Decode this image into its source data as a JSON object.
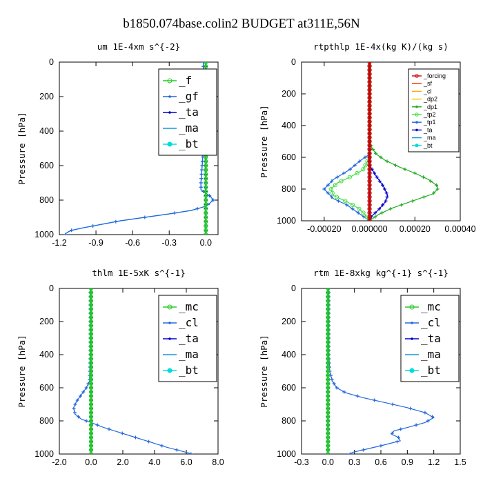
{
  "title": "b1850.074base.colin2  BUDGET at311E,56N",
  "colors": {
    "forcing": "#cc0000",
    "sf": "#ee3300",
    "cl": "#ffaa00",
    "dp2": "#ddcc00",
    "dp1": "#22aa22",
    "tp2": "#44dd44",
    "tp1": "#2266dd",
    "ta": "#0000cc",
    "ma": "#1199dd",
    "bt": "#00dddd",
    "mc": "#22cc22",
    "f": "#22cc22",
    "gf": "#2266dd"
  },
  "chart_data": [
    {
      "type": "line",
      "title": "um   1E-4xm s^{-2}",
      "ylabel": "Pressure [hPa]",
      "ylim": [
        1000,
        0
      ],
      "xlim": [
        -1.2,
        0.1
      ],
      "xticks": [
        -1.2,
        -0.9,
        -0.6,
        -0.3,
        0.0
      ],
      "xticklabels": [
        "-1.2",
        "-0.9",
        "-0.6",
        "-0.3",
        "0.0"
      ],
      "yticks": [
        0,
        200,
        400,
        600,
        800,
        1000
      ],
      "yticklabels": [
        "0",
        "200",
        "400",
        "600",
        "800",
        "1000"
      ],
      "legend": {
        "position": "top-right",
        "size": "large"
      },
      "series": [
        {
          "name": "_f",
          "color_key": "f",
          "marker": "circle",
          "width": 2.5,
          "points": [
            [
              0.0,
              0
            ],
            [
              0.0,
              100
            ],
            [
              0.0,
              200
            ],
            [
              0.0,
              300
            ],
            [
              0.0,
              400
            ],
            [
              0.0,
              500
            ],
            [
              0.0,
              600
            ],
            [
              0.0,
              700
            ],
            [
              0.0,
              800
            ],
            [
              0.0,
              900
            ],
            [
              0.0,
              1000
            ]
          ]
        },
        {
          "name": "_gf",
          "color_key": "gf",
          "marker": "dot",
          "points": [
            [
              -0.02,
              0
            ],
            [
              -0.02,
              300
            ],
            [
              -0.02,
              500
            ],
            [
              -0.03,
              600
            ],
            [
              -0.04,
              700
            ],
            [
              -0.04,
              740
            ],
            [
              0.0,
              760
            ],
            [
              0.04,
              780
            ],
            [
              0.06,
              800
            ],
            [
              0.03,
              820
            ],
            [
              -0.02,
              840
            ],
            [
              -0.12,
              860
            ],
            [
              -0.3,
              880
            ],
            [
              -0.5,
              900
            ],
            [
              -0.7,
              920
            ],
            [
              -0.85,
              940
            ],
            [
              -1.0,
              960
            ],
            [
              -1.1,
              975
            ],
            [
              -1.13,
              985
            ],
            [
              -1.15,
              995
            ],
            [
              -1.15,
              1000
            ]
          ]
        },
        {
          "name": "_ta",
          "color_key": "ta",
          "marker": "dot",
          "points": [
            [
              0.0,
              0
            ],
            [
              0.0,
              1000
            ]
          ]
        },
        {
          "name": "_ma",
          "color_key": "ma",
          "marker": "dash",
          "points": [
            [
              -0.02,
              0
            ],
            [
              -0.02,
              300
            ],
            [
              -0.02,
              500
            ],
            [
              -0.03,
              600
            ],
            [
              -0.04,
              700
            ],
            [
              -0.04,
              740
            ],
            [
              0.0,
              760
            ],
            [
              0.04,
              780
            ],
            [
              0.06,
              800
            ],
            [
              0.03,
              820
            ],
            [
              -0.02,
              840
            ],
            [
              -0.12,
              860
            ],
            [
              -0.3,
              880
            ],
            [
              -0.5,
              900
            ],
            [
              -0.7,
              920
            ],
            [
              -0.85,
              940
            ],
            [
              -1.0,
              960
            ],
            [
              -1.1,
              975
            ],
            [
              -1.13,
              985
            ],
            [
              -1.15,
              995
            ],
            [
              -1.15,
              1000
            ]
          ]
        },
        {
          "name": "_bt",
          "color_key": "bt",
          "marker": "none",
          "points": [
            [
              0.0,
              0
            ],
            [
              0.0,
              1000
            ]
          ]
        }
      ]
    },
    {
      "type": "line",
      "title": "rtpthlp   1E-4x(kg K)/(kg s)",
      "ylabel": "Pressure [hPa]",
      "ylim": [
        1000,
        0
      ],
      "xlim": [
        -0.0003,
        0.0004
      ],
      "xticks": [
        -0.0002,
        0.0,
        0.0002,
        0.0004
      ],
      "xticklabels": [
        "-0.00020",
        "0.000000",
        "0.00020",
        "0.00040"
      ],
      "yticks": [
        0,
        200,
        400,
        600,
        800,
        1000
      ],
      "yticklabels": [
        "0",
        "200",
        "400",
        "600",
        "800",
        "1000"
      ],
      "legend": {
        "position": "top-right",
        "size": "small"
      },
      "series": [
        {
          "name": "_forcing",
          "color_key": "forcing",
          "marker": "circle",
          "width": 3,
          "points": [
            [
              0.0,
              0
            ],
            [
              0.0,
              200
            ],
            [
              0.0,
              400
            ],
            [
              0.0,
              600
            ],
            [
              0.0,
              800
            ],
            [
              0.0,
              1000
            ]
          ]
        },
        {
          "name": "_sf",
          "color_key": "sf",
          "marker": "none",
          "points": [
            [
              0.0,
              0
            ],
            [
              0.0,
              1000
            ]
          ]
        },
        {
          "name": "_cl",
          "color_key": "cl",
          "marker": "none",
          "points": [
            [
              0.0,
              0
            ],
            [
              0.0,
              1000
            ]
          ]
        },
        {
          "name": "_dp2",
          "color_key": "dp2",
          "marker": "none",
          "points": [
            [
              0.0,
              0
            ],
            [
              0.0,
              1000
            ]
          ]
        },
        {
          "name": "_dp1",
          "color_key": "dp1",
          "marker": "dot",
          "points": [
            [
              0.0,
              0
            ],
            [
              0.0,
              500
            ],
            [
              1e-05,
              540
            ],
            [
              3e-05,
              580
            ],
            [
              7e-05,
              620
            ],
            [
              0.00013,
              660
            ],
            [
              0.0002,
              700
            ],
            [
              0.00026,
              740
            ],
            [
              0.0003,
              780
            ],
            [
              0.0003,
              800
            ],
            [
              0.00028,
              830
            ],
            [
              0.0002,
              870
            ],
            [
              0.0001,
              920
            ],
            [
              4e-05,
              960
            ],
            [
              0.0,
              1000
            ]
          ]
        },
        {
          "name": "_tp2",
          "color_key": "tp2",
          "marker": "circle",
          "points": [
            [
              0.0,
              0
            ],
            [
              0.0,
              600
            ],
            [
              -3e-05,
              680
            ],
            [
              -8e-05,
              720
            ],
            [
              -0.00014,
              760
            ],
            [
              -0.00017,
              800
            ],
            [
              -0.00016,
              840
            ],
            [
              -0.0001,
              880
            ],
            [
              -5e-05,
              920
            ],
            [
              -2e-05,
              960
            ],
            [
              0.0,
              1000
            ]
          ]
        },
        {
          "name": "_tp1",
          "color_key": "tp1",
          "marker": "dot",
          "points": [
            [
              0.0,
              0
            ],
            [
              0.0,
              580
            ],
            [
              -4e-05,
              620
            ],
            [
              -9e-05,
              680
            ],
            [
              -0.00016,
              740
            ],
            [
              -0.0002,
              800
            ],
            [
              -0.00016,
              860
            ],
            [
              -0.0001,
              900
            ],
            [
              -5e-05,
              950
            ],
            [
              0.0,
              1000
            ]
          ]
        },
        {
          "name": "_ta",
          "color_key": "ta",
          "marker": "dot",
          "points": [
            [
              0.0,
              0
            ],
            [
              0.0,
              650
            ],
            [
              3e-05,
              720
            ],
            [
              6e-05,
              780
            ],
            [
              8e-05,
              840
            ],
            [
              7e-05,
              880
            ],
            [
              4e-05,
              930
            ],
            [
              1e-05,
              970
            ],
            [
              0.0,
              1000
            ]
          ]
        },
        {
          "name": "_ma",
          "color_key": "ma",
          "marker": "dash",
          "points": [
            [
              0.0,
              0
            ],
            [
              0.0,
              1000
            ]
          ]
        },
        {
          "name": "_bt",
          "color_key": "bt",
          "marker": "none",
          "points": [
            [
              0.0,
              0
            ],
            [
              0.0,
              1000
            ]
          ]
        }
      ]
    },
    {
      "type": "line",
      "title": "thlm   1E-5xK s^{-1}",
      "ylabel": "Pressure [hPa]",
      "ylim": [
        1000,
        0
      ],
      "xlim": [
        -2.0,
        8.0
      ],
      "xticks": [
        -2.0,
        0.0,
        2.0,
        4.0,
        6.0,
        8.0
      ],
      "xticklabels": [
        "-2.0",
        "0.0",
        "2.0",
        "4.0",
        "6.0",
        "8.0"
      ],
      "yticks": [
        0,
        200,
        400,
        600,
        800,
        1000
      ],
      "yticklabels": [
        "0",
        "200",
        "400",
        "600",
        "800",
        "1000"
      ],
      "legend": {
        "position": "top-right",
        "size": "large"
      },
      "series": [
        {
          "name": "_mc",
          "color_key": "mc",
          "marker": "circle",
          "width": 2.5,
          "points": [
            [
              0.0,
              0
            ],
            [
              0.0,
              100
            ],
            [
              0.0,
              200
            ],
            [
              0.0,
              300
            ],
            [
              0.0,
              400
            ],
            [
              0.0,
              500
            ],
            [
              0.0,
              600
            ],
            [
              0.0,
              700
            ],
            [
              0.0,
              800
            ],
            [
              0.0,
              900
            ],
            [
              0.0,
              1000
            ]
          ]
        },
        {
          "name": "_cl",
          "color_key": "tp1",
          "marker": "dot",
          "points": [
            [
              -0.05,
              0
            ],
            [
              -0.05,
              400
            ],
            [
              -0.1,
              560
            ],
            [
              -0.3,
              600
            ],
            [
              -0.6,
              640
            ],
            [
              -0.9,
              680
            ],
            [
              -1.1,
              720
            ],
            [
              -1.0,
              760
            ],
            [
              -0.6,
              790
            ],
            [
              0.0,
              810
            ],
            [
              0.8,
              840
            ],
            [
              1.8,
              870
            ],
            [
              2.8,
              900
            ],
            [
              3.8,
              930
            ],
            [
              4.8,
              960
            ],
            [
              5.8,
              985
            ],
            [
              6.2,
              995
            ],
            [
              6.3,
              1000
            ]
          ]
        },
        {
          "name": "_ta",
          "color_key": "ta",
          "marker": "dot",
          "points": [
            [
              0.0,
              0
            ],
            [
              0.0,
              1000
            ]
          ]
        },
        {
          "name": "_ma",
          "color_key": "ma",
          "marker": "dash",
          "points": [
            [
              0.0,
              0
            ],
            [
              0.0,
              1000
            ]
          ]
        },
        {
          "name": "_bt",
          "color_key": "bt",
          "marker": "none",
          "points": [
            [
              0.0,
              0
            ],
            [
              0.0,
              1000
            ]
          ]
        }
      ]
    },
    {
      "type": "line",
      "title": "rtm   1E-8xkg kg^{-1} s^{-1}",
      "ylabel": "Pressure [hPa]",
      "ylim": [
        1000,
        0
      ],
      "xlim": [
        -0.3,
        1.5
      ],
      "xticks": [
        -0.3,
        0.0,
        0.3,
        0.6,
        0.9,
        1.2,
        1.5
      ],
      "xticklabels": [
        "-0.3",
        "0.0",
        "0.3",
        "0.6",
        "0.9",
        "1.2",
        "1.5"
      ],
      "yticks": [
        0,
        200,
        400,
        600,
        800,
        1000
      ],
      "yticklabels": [
        "0",
        "200",
        "400",
        "600",
        "800",
        "1000"
      ],
      "legend": {
        "position": "top-right",
        "size": "large"
      },
      "series": [
        {
          "name": "_mc",
          "color_key": "mc",
          "marker": "circle",
          "width": 2.5,
          "points": [
            [
              0.0,
              0
            ],
            [
              0.0,
              100
            ],
            [
              0.0,
              200
            ],
            [
              0.0,
              300
            ],
            [
              0.0,
              400
            ],
            [
              0.0,
              500
            ],
            [
              0.0,
              600
            ],
            [
              0.0,
              700
            ],
            [
              0.0,
              800
            ],
            [
              0.0,
              900
            ],
            [
              0.0,
              1000
            ]
          ]
        },
        {
          "name": "_cl",
          "color_key": "tp1",
          "marker": "dot",
          "points": [
            [
              0.01,
              0
            ],
            [
              0.01,
              400
            ],
            [
              0.02,
              500
            ],
            [
              0.05,
              560
            ],
            [
              0.1,
              600
            ],
            [
              0.2,
              630
            ],
            [
              0.4,
              660
            ],
            [
              0.65,
              690
            ],
            [
              0.9,
              720
            ],
            [
              1.1,
              750
            ],
            [
              1.2,
              780
            ],
            [
              1.1,
              810
            ],
            [
              0.9,
              840
            ],
            [
              0.75,
              860
            ],
            [
              0.72,
              880
            ],
            [
              0.8,
              900
            ],
            [
              0.82,
              920
            ],
            [
              0.6,
              950
            ],
            [
              0.4,
              975
            ],
            [
              0.28,
              990
            ],
            [
              0.25,
              1000
            ]
          ]
        },
        {
          "name": "_ta",
          "color_key": "ta",
          "marker": "dot",
          "points": [
            [
              0.0,
              0
            ],
            [
              0.0,
              1000
            ]
          ]
        },
        {
          "name": "_ma",
          "color_key": "ma",
          "marker": "dash",
          "points": [
            [
              0.0,
              0
            ],
            [
              0.0,
              1000
            ]
          ]
        },
        {
          "name": "_bt",
          "color_key": "bt",
          "marker": "none",
          "points": [
            [
              0.0,
              0
            ],
            [
              0.0,
              1000
            ]
          ]
        }
      ]
    }
  ]
}
